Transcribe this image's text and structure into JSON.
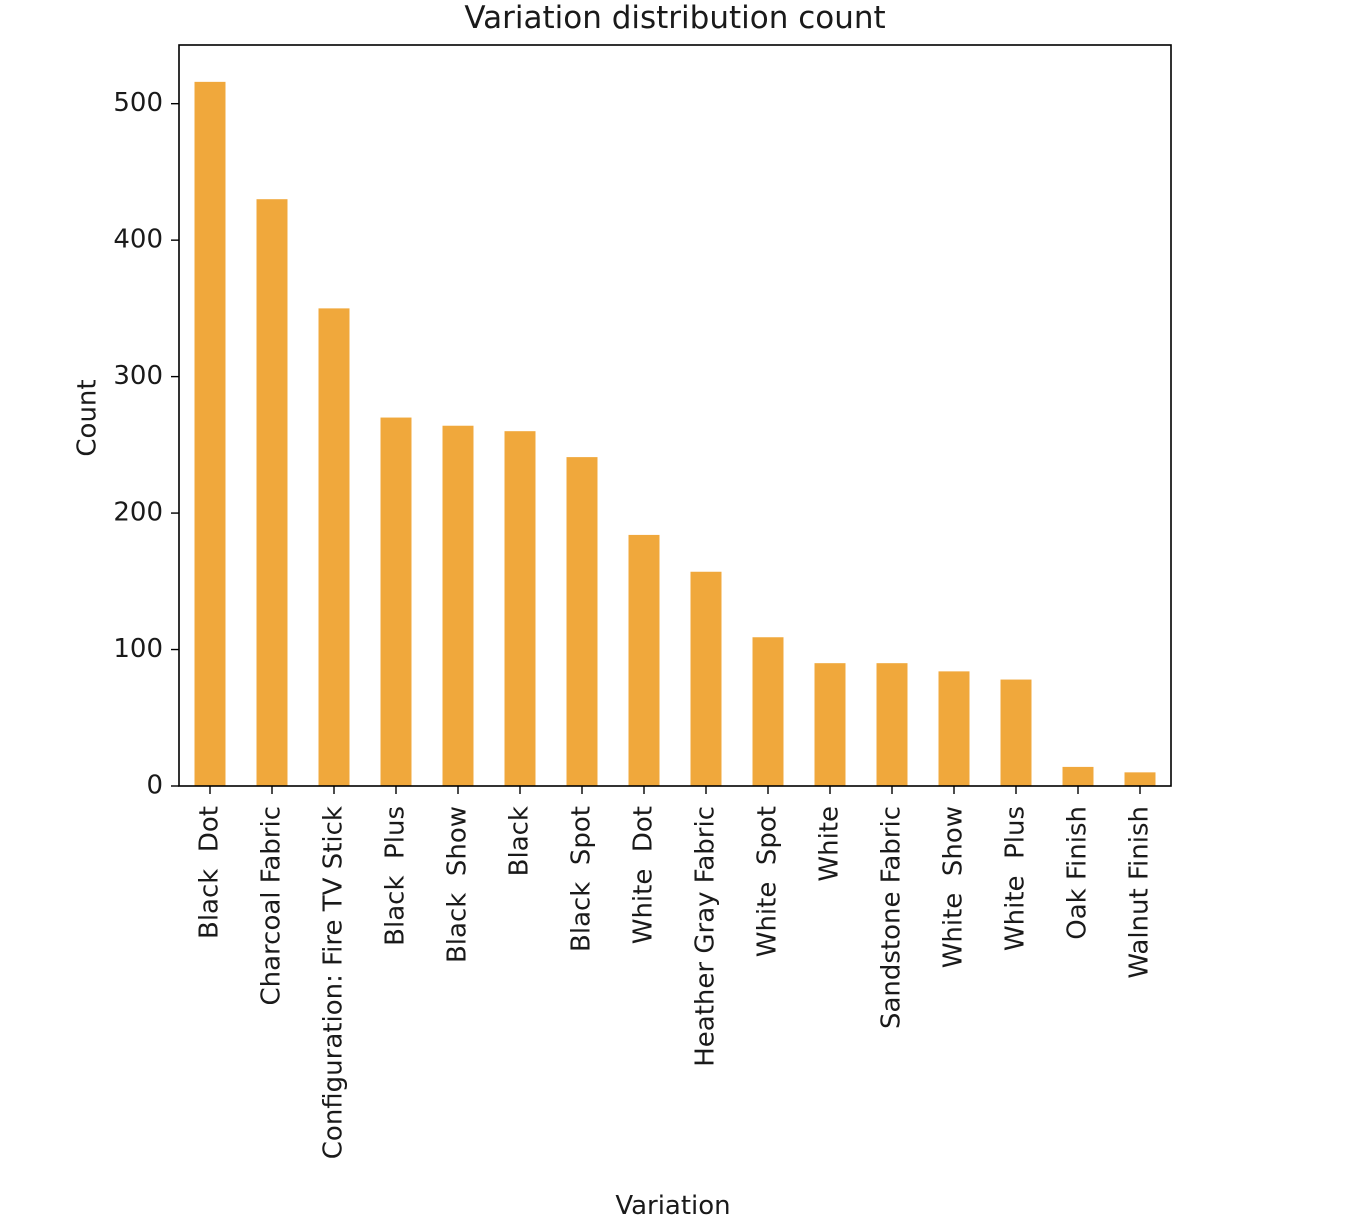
{
  "chart_data": {
    "type": "bar",
    "title": "Variation distribution count",
    "xlabel": "Variation",
    "ylabel": "Count",
    "categories": [
      "Black  Dot",
      "Charcoal Fabric",
      "Configuration: Fire TV Stick",
      "Black  Plus",
      "Black  Show",
      "Black",
      "Black  Spot",
      "White  Dot",
      "Heather Gray Fabric",
      "White  Spot",
      "White",
      "Sandstone Fabric",
      "White  Show",
      "White  Plus",
      "Oak Finish",
      "Walnut Finish"
    ],
    "values": [
      516,
      430,
      350,
      270,
      264,
      260,
      241,
      184,
      157,
      109,
      90,
      90,
      84,
      78,
      14,
      10
    ],
    "ylim": [
      0,
      543
    ],
    "yticks": [
      0,
      100,
      200,
      300,
      400,
      500
    ],
    "bar_color": "#f0a83c",
    "grid": false,
    "legend": "none"
  }
}
